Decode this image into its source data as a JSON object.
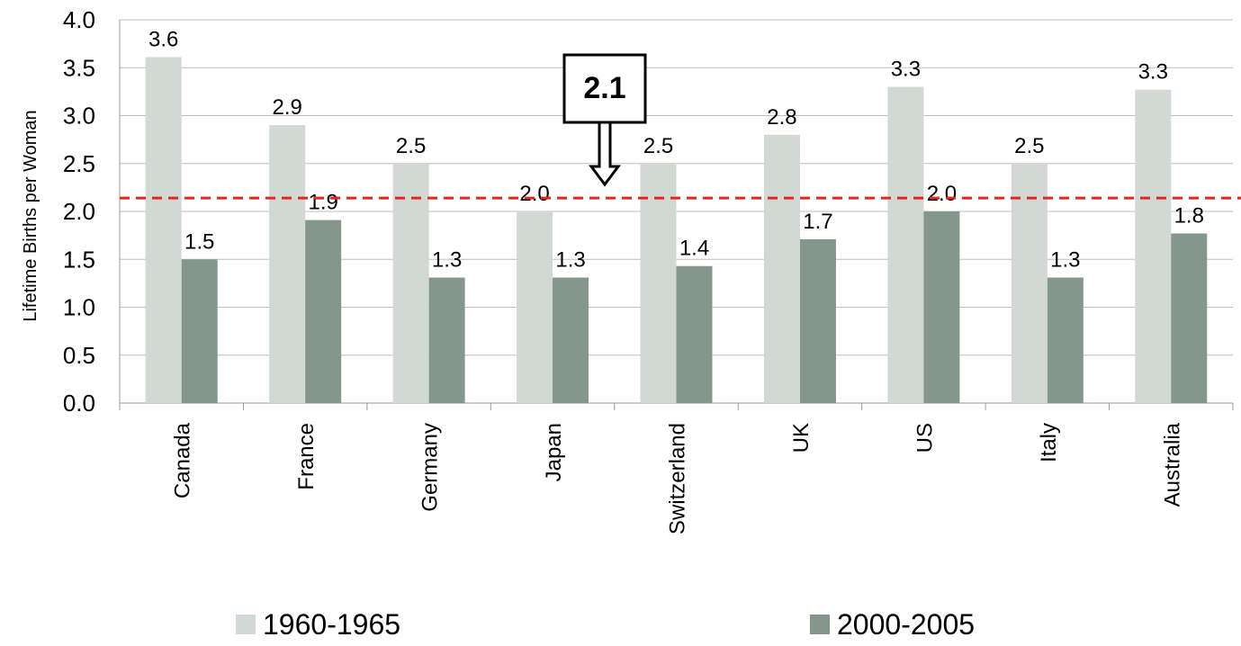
{
  "chart_data": {
    "type": "bar",
    "title": "",
    "xlabel": "",
    "ylabel": "Lifetime Births per Woman",
    "ylim": [
      0,
      4.0
    ],
    "yticks": [
      "0.0",
      "0.5",
      "1.0",
      "1.5",
      "2.0",
      "2.5",
      "3.0",
      "3.5",
      "4.0"
    ],
    "categories": [
      "Canada",
      "France",
      "Germany",
      "Japan",
      "Switzerland",
      "UK",
      "US",
      "Italy",
      "Australia"
    ],
    "series": [
      {
        "name": "1960-1965",
        "color": "#d2d8d3",
        "values": [
          3.61,
          2.9,
          2.5,
          2.0,
          2.5,
          2.8,
          3.3,
          2.5,
          3.27
        ],
        "labels": [
          "3.6",
          "2.9",
          "2.5",
          "2.0",
          "2.5",
          "2.8",
          "3.3",
          "2.5",
          "3.3"
        ]
      },
      {
        "name": "2000-2005",
        "color": "#85978d",
        "values": [
          1.5,
          1.91,
          1.31,
          1.31,
          1.43,
          1.71,
          2.0,
          1.31,
          1.77
        ],
        "labels": [
          "1.5",
          "1.9",
          "1.3",
          "1.3",
          "1.4",
          "1.7",
          "2.0",
          "1.3",
          "1.8"
        ]
      }
    ],
    "reference_line": {
      "value": 2.14,
      "label": "2.1",
      "color": "#e0281e"
    },
    "grid": true,
    "legend": "bottom"
  }
}
